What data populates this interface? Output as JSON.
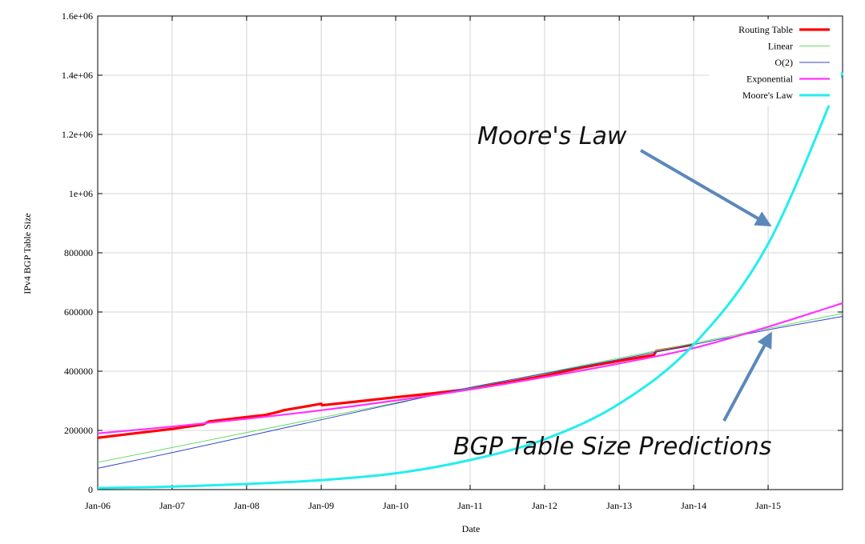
{
  "chart_data": {
    "type": "line",
    "title": "",
    "xlabel": "Date",
    "ylabel": "IPv4 BGP Table Size",
    "xlim": [
      "2006-01-01",
      "2016-01-01"
    ],
    "ylim": [
      0,
      1600000
    ],
    "grid": true,
    "legend_position": "top-right",
    "x_ticks": [
      "Jan-06",
      "Jan-07",
      "Jan-08",
      "Jan-09",
      "Jan-10",
      "Jan-11",
      "Jan-12",
      "Jan-13",
      "Jan-14",
      "Jan-15"
    ],
    "y_ticks": [
      {
        "value": 0,
        "label": "0"
      },
      {
        "value": 200000,
        "label": "200000"
      },
      {
        "value": 400000,
        "label": "400000"
      },
      {
        "value": 600000,
        "label": "600000"
      },
      {
        "value": 800000,
        "label": "800000"
      },
      {
        "value": 1000000,
        "label": "1e+06"
      },
      {
        "value": 1200000,
        "label": "1.2e+06"
      },
      {
        "value": 1400000,
        "label": "1.4e+06"
      },
      {
        "value": 1600000,
        "label": "1.6e+06"
      }
    ],
    "series": [
      {
        "name": "Routing Table",
        "color": "#ff0000",
        "x": [
          "2006-01-01",
          "2006-07-01",
          "2007-01-01",
          "2007-06-01",
          "2007-07-01",
          "2008-01-01",
          "2008-04-01",
          "2008-06-01",
          "2008-07-01",
          "2009-01-01",
          "2009-01-05",
          "2009-07-01",
          "2010-01-01",
          "2010-07-01",
          "2011-01-01",
          "2011-07-01",
          "2012-01-01",
          "2012-07-01",
          "2013-01-01",
          "2013-06-20",
          "2013-07-01",
          "2014-01-01"
        ],
        "values": [
          175000,
          190000,
          205000,
          220000,
          230000,
          245000,
          252000,
          262000,
          268000,
          290000,
          285000,
          298000,
          312000,
          325000,
          340000,
          362000,
          385000,
          412000,
          435000,
          455000,
          468000,
          490000
        ]
      },
      {
        "name": "Linear",
        "color": "#66dd66",
        "x": [
          "2006-01-01",
          "2016-01-01"
        ],
        "values": [
          92000,
          595000
        ]
      },
      {
        "name": "O(2)",
        "color": "#3344cc",
        "x": [
          "2006-01-01",
          "2007-01-01",
          "2008-01-01",
          "2009-01-01",
          "2010-01-01",
          "2011-01-01",
          "2012-01-01",
          "2013-01-01",
          "2014-01-01",
          "2015-01-01",
          "2016-01-01"
        ],
        "values": [
          72000,
          125000,
          180000,
          236000,
          291000,
          345000,
          392000,
          440000,
          490000,
          540000,
          585000
        ]
      },
      {
        "name": "Exponential",
        "color": "#ff33ff",
        "x": [
          "2006-01-01",
          "2007-01-01",
          "2008-01-01",
          "2009-01-01",
          "2010-01-01",
          "2011-01-01",
          "2012-01-01",
          "2013-01-01",
          "2014-01-01",
          "2015-01-01",
          "2016-01-01"
        ],
        "values": [
          190000,
          213000,
          239000,
          268000,
          301000,
          338000,
          380000,
          426000,
          478000,
          550000,
          630000
        ]
      },
      {
        "name": "Moore's Law",
        "color": "#22eeee",
        "x": [
          "2006-01-01",
          "2007-01-01",
          "2008-01-01",
          "2009-01-01",
          "2010-01-01",
          "2011-01-01",
          "2012-01-01",
          "2013-01-01",
          "2014-01-01",
          "2015-01-01",
          "2016-01-01"
        ],
        "values": [
          5000,
          10000,
          19000,
          32000,
          55000,
          100000,
          170000,
          290000,
          490000,
          830000,
          1410000
        ]
      }
    ],
    "annotations": [
      {
        "text": "Moore's Law",
        "target_x": "2015-01-01",
        "target_y": 890000
      },
      {
        "text": "BGP Table Size Predictions",
        "target_x": "2015-01-01",
        "target_y": 530000
      }
    ]
  }
}
